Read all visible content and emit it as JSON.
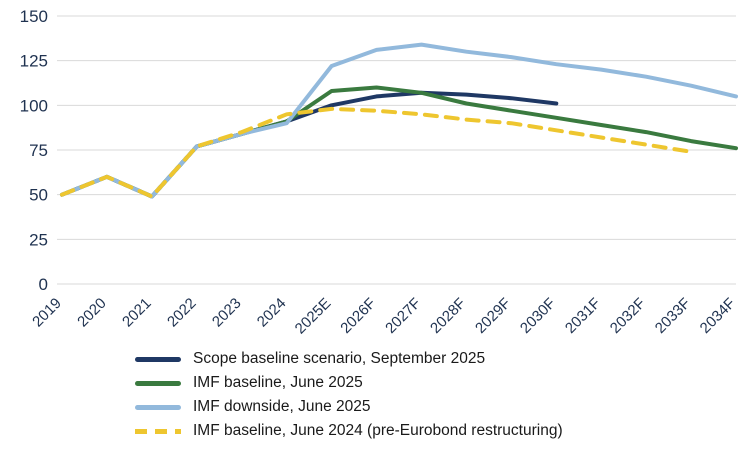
{
  "chart_data": {
    "type": "line",
    "title": "",
    "xlabel": "",
    "ylabel": "",
    "ylim": [
      0,
      150
    ],
    "yticks": [
      0,
      25,
      50,
      75,
      100,
      125,
      150
    ],
    "grid": "horizontal",
    "legend_position": "bottom-left",
    "axis_text_color": "#1f3250",
    "gridline_color": "#d9d9d9",
    "categories": [
      "2019",
      "2020",
      "2021",
      "2022",
      "2023",
      "2024",
      "2025E",
      "2026F",
      "2027F",
      "2028F",
      "2029F",
      "2030F",
      "2031F",
      "2032F",
      "2033F",
      "2034F"
    ],
    "series": [
      {
        "name": "Scope baseline scenario, September 2025",
        "color": "#1f3864",
        "dash": false,
        "values": [
          50,
          60,
          49,
          77,
          84,
          91,
          100,
          105,
          107,
          106,
          104,
          101,
          null,
          null,
          null,
          null
        ]
      },
      {
        "name": "IMF baseline, June 2025",
        "color": "#3a7a3f",
        "dash": false,
        "values": [
          50,
          60,
          49,
          77,
          84,
          91,
          108,
          110,
          107,
          101,
          97,
          93,
          89,
          85,
          80,
          76
        ]
      },
      {
        "name": "IMF downside, June 2025",
        "color": "#92b9dc",
        "dash": false,
        "values": [
          50,
          60,
          49,
          77,
          84,
          90,
          122,
          131,
          134,
          130,
          127,
          123,
          120,
          116,
          111,
          105
        ]
      },
      {
        "name": "IMF baseline, June 2024 (pre-Eurobond restructuring)",
        "color": "#eec62f",
        "dash": true,
        "values": [
          50,
          60,
          49,
          77,
          85,
          95,
          98,
          97,
          95,
          92,
          90,
          86,
          82,
          78,
          74,
          null
        ]
      }
    ]
  }
}
